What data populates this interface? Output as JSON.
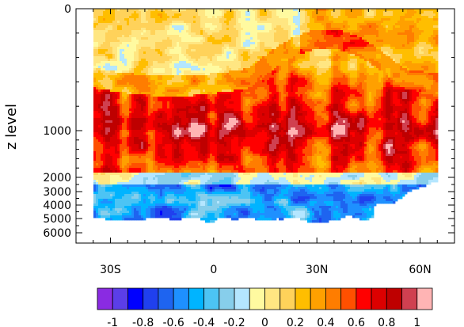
{
  "chart_data": {
    "type": "heatmap",
    "title": "",
    "xlabel": "",
    "ylabel": "z level",
    "x_ticks": [
      {
        "value": -30,
        "label": "30S"
      },
      {
        "value": 0,
        "label": "0"
      },
      {
        "value": 30,
        "label": "30N"
      },
      {
        "value": 60,
        "label": "60N"
      }
    ],
    "xlim": [
      -40,
      70
    ],
    "y_ticks": [
      {
        "value": 0,
        "label": "0"
      },
      {
        "value": 1000,
        "label": "1000"
      },
      {
        "value": 2000,
        "label": "2000"
      },
      {
        "value": 3000,
        "label": "3000"
      },
      {
        "value": 4000,
        "label": "4000"
      },
      {
        "value": 5000,
        "label": "5000"
      },
      {
        "value": 6000,
        "label": "6000"
      }
    ],
    "ylim": [
      0,
      6000
    ],
    "colorbar": {
      "placement": "bottom",
      "colors": [
        "#8a2be2",
        "#5b3ee8",
        "#0000ff",
        "#2040ee",
        "#1e64f0",
        "#1e90ff",
        "#00b4ff",
        "#4cc4f4",
        "#87ceeb",
        "#b4e6ff",
        "#fffaa0",
        "#ffe682",
        "#ffd25a",
        "#ffbe00",
        "#ffa000",
        "#ff7d00",
        "#ff5000",
        "#ff0000",
        "#dc0000",
        "#be0000",
        "#d04050",
        "#ffb4b4"
      ],
      "labels": [
        "-1",
        "-0.8",
        "-0.6",
        "-0.4",
        "-0.2",
        "0",
        "0.2",
        "0.4",
        "0.6",
        "0.8",
        "1"
      ],
      "label_values": [
        -1,
        -0.8,
        -0.6,
        -0.4,
        -0.2,
        0,
        0.2,
        0.4,
        0.6,
        0.8,
        1
      ]
    }
  }
}
